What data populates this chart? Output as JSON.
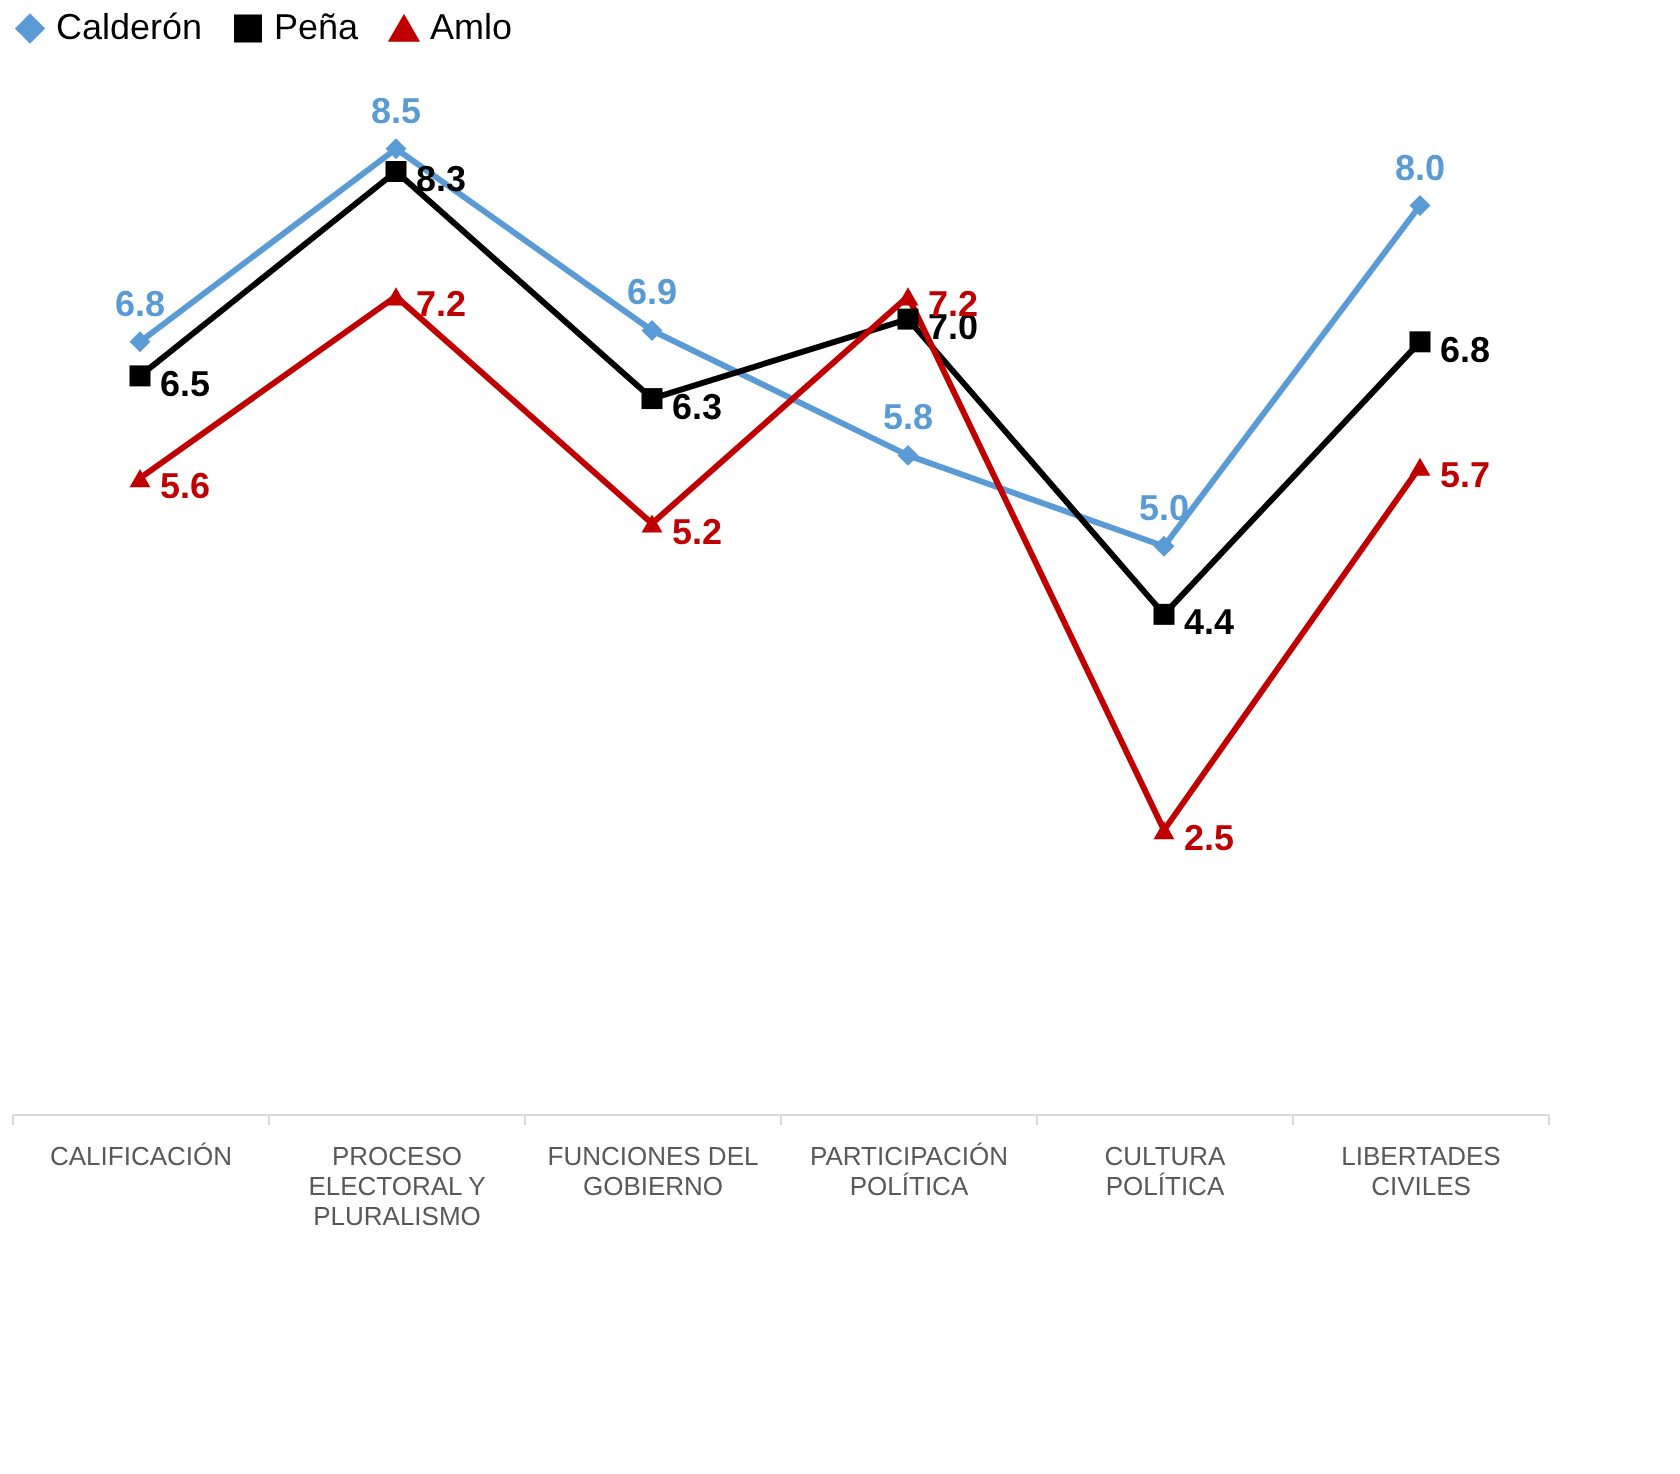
{
  "chart_data": {
    "type": "line",
    "categories": [
      "CALIFICACIÓN",
      "PROCESO ELECTORAL Y PLURALISMO",
      "FUNCIONES DEL GOBIERNO",
      "PARTICIPACIÓN POLÍTICA",
      "CULTURA POLÍTICA",
      "LIBERTADES CIVILES"
    ],
    "series": [
      {
        "name": "Calderón",
        "color": "#5b9bd5",
        "marker": "diamond",
        "values": [
          6.8,
          8.5,
          6.9,
          5.8,
          5.0,
          8.0
        ],
        "value_labels": [
          "6.8",
          "8.5",
          "6.9",
          "5.8",
          "5.0",
          "8.0"
        ]
      },
      {
        "name": "Peña",
        "color": "#000000",
        "marker": "square",
        "values": [
          6.5,
          8.3,
          6.3,
          7.0,
          4.4,
          6.8
        ],
        "value_labels": [
          "6.5",
          "8.3",
          "6.3",
          "7.0",
          "4.4",
          "6.8"
        ]
      },
      {
        "name": "Amlo",
        "color": "#c00000",
        "marker": "triangle",
        "values": [
          5.6,
          7.2,
          5.2,
          7.2,
          2.5,
          5.7
        ],
        "value_labels": [
          "5.6",
          "7.2",
          "5.2",
          "7.2",
          "2.5",
          "5.7"
        ]
      }
    ],
    "tick_labels": "x",
    "legend": "top",
    "grid": false,
    "line_style": "solid"
  }
}
